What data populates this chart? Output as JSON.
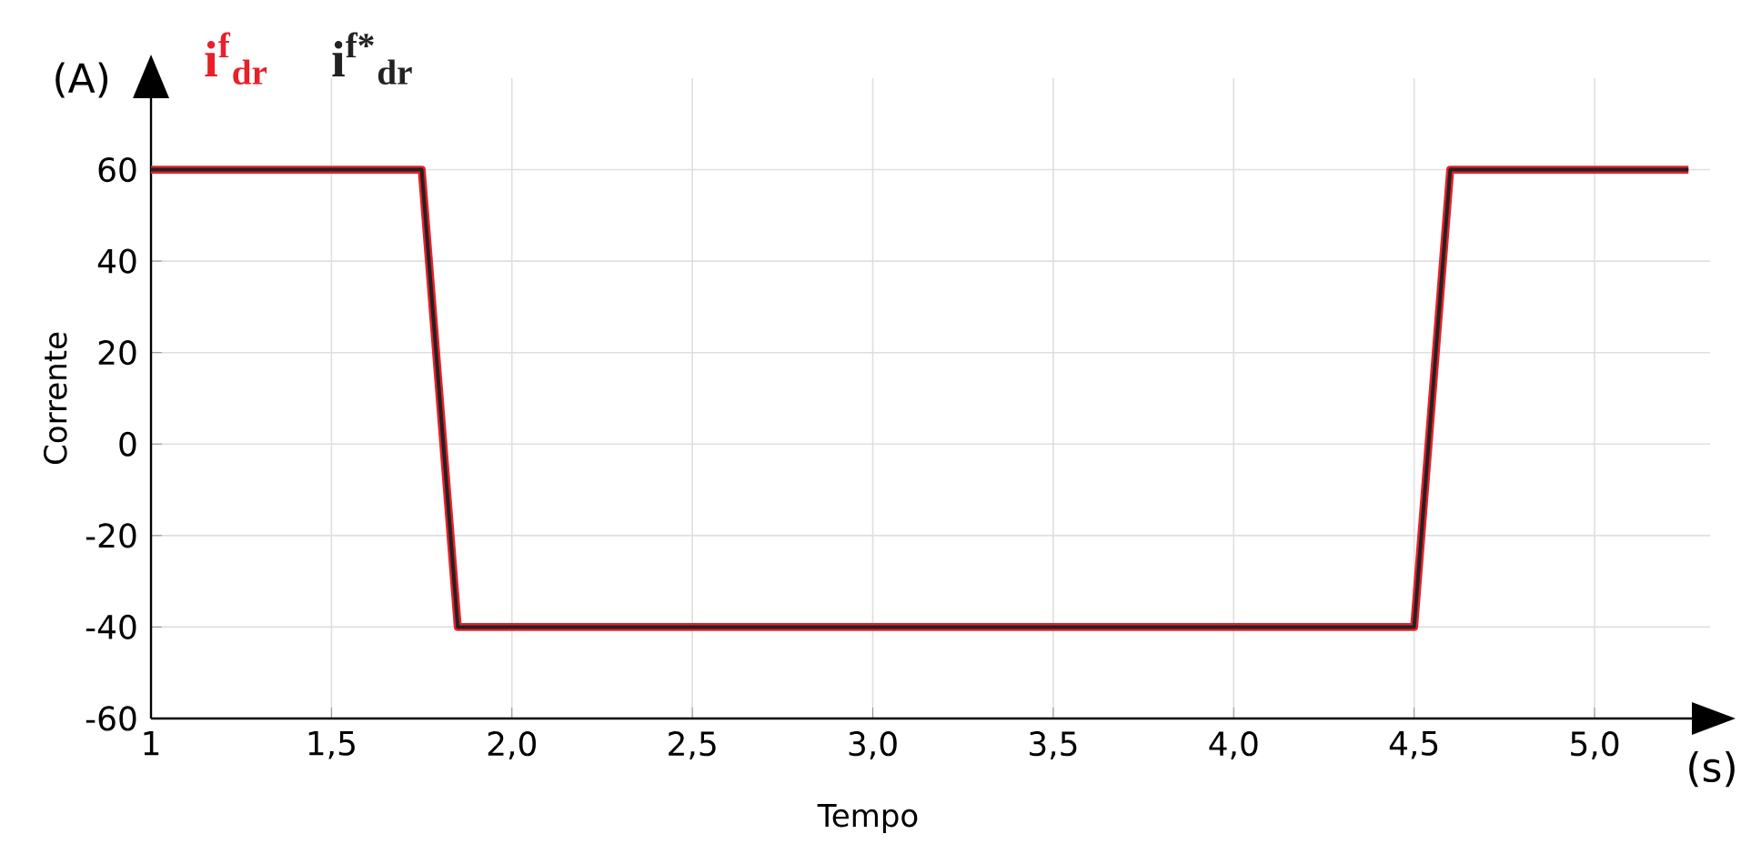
{
  "chart_data": {
    "type": "line",
    "xlabel": "Tempo",
    "ylabel": "Corrente",
    "annotations": [
      "(A)",
      "(s)"
    ],
    "x": [
      1,
      1.75,
      1.85,
      4.5,
      4.6,
      5.26
    ],
    "series": [
      {
        "name": "i$^{f}$$_{dr}$",
        "color": "#e8202a",
        "values": [
          60,
          60,
          -40,
          -40,
          60,
          60
        ]
      },
      {
        "name": "i$^{f*}$$_{dr}$",
        "color": "#222222",
        "values": [
          60,
          60,
          -40,
          -40,
          60,
          60
        ]
      }
    ],
    "xlim": [
      1,
      5.32
    ],
    "ylim": [
      -60,
      80
    ],
    "xticks": [
      1,
      {
        "value": 1.5,
        "label": "1,5"
      },
      {
        "value": 2.0,
        "label": "2,0"
      },
      {
        "value": 2.5,
        "label": "2,5"
      },
      {
        "value": 3.0,
        "label": "3,0"
      },
      {
        "value": 3.5,
        "label": "3,5"
      },
      {
        "value": 4.0,
        "label": "4,0"
      },
      {
        "value": 4.5,
        "label": "4,5"
      },
      {
        "value": 5.0,
        "label": "5,0"
      }
    ],
    "yticks": [
      -60,
      -40,
      -20,
      0,
      20,
      40,
      60
    ],
    "grid": true,
    "legend": "top left",
    "marker": "none",
    "line_style": "solid"
  }
}
